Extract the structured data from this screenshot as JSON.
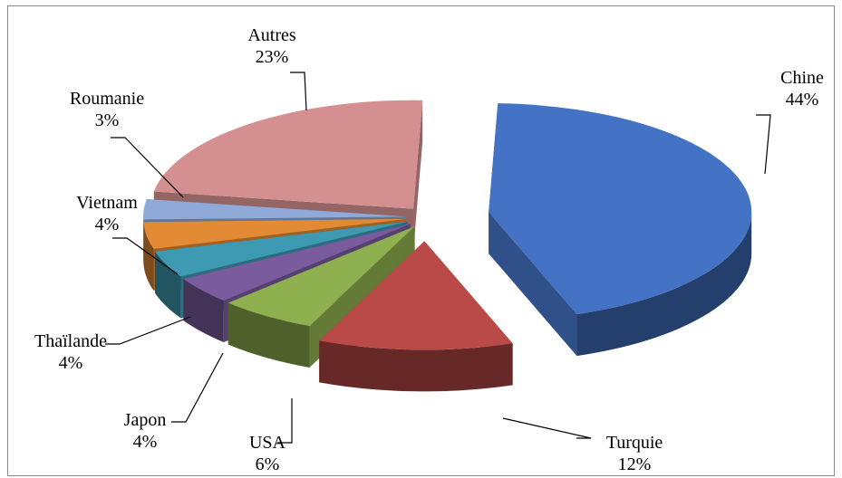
{
  "chart_data": {
    "type": "pie",
    "subtype": "3d-exploded",
    "title": "",
    "unit": "%",
    "slices": [
      {
        "name": "Chine",
        "label": "Chine",
        "value": 44,
        "value_label": "44%",
        "color": "#4472C4"
      },
      {
        "name": "Turquie",
        "label": "Turquie",
        "value": 12,
        "value_label": "12%",
        "color": "#B94A48"
      },
      {
        "name": "USA",
        "label": "USA",
        "value": 6,
        "value_label": "6%",
        "color": "#8FB04F"
      },
      {
        "name": "Japon",
        "label": "Japon",
        "value": 4,
        "value_label": "4%",
        "color": "#7A5C9E"
      },
      {
        "name": "Thaïlande",
        "label": "Thaïlande",
        "value": 4,
        "value_label": "4%",
        "color": "#3E9AB3"
      },
      {
        "name": "Vietnam",
        "label": "Vietnam",
        "value": 4,
        "value_label": "4%",
        "color": "#E38A35"
      },
      {
        "name": "Roumanie",
        "label": "Roumanie",
        "value": 3,
        "value_label": "3%",
        "color": "#8FA9D8"
      },
      {
        "name": "Autres",
        "label": "Autres",
        "value": 23,
        "value_label": "23%",
        "color": "#D49090"
      }
    ],
    "legend": "none",
    "grid": false
  }
}
